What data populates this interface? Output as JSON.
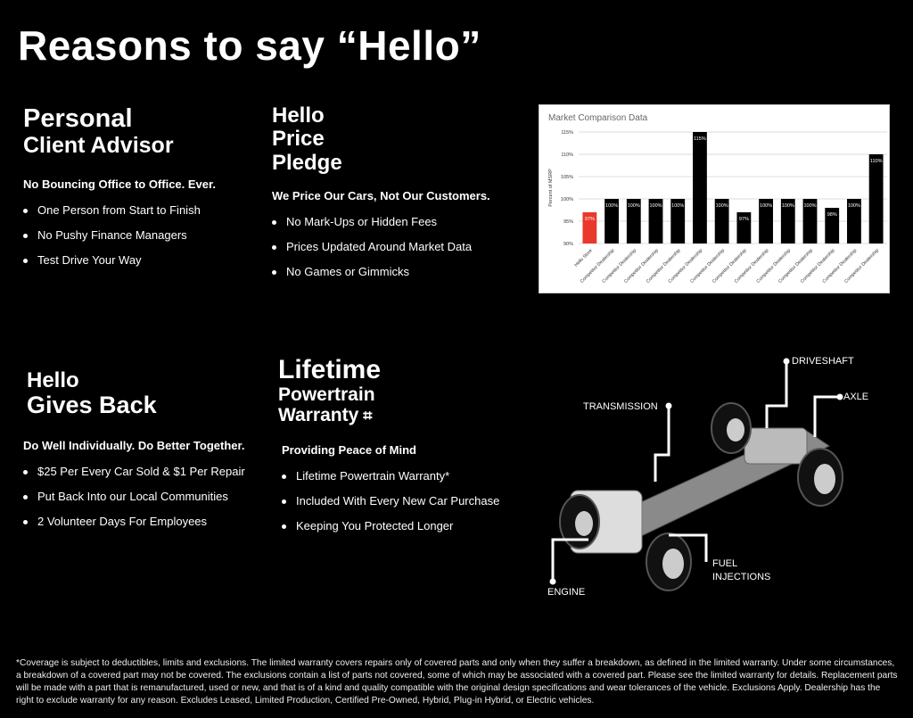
{
  "page_title": "Reasons to say “Hello”",
  "sections": [
    {
      "title_lines": [
        "Personal",
        "Client Advisor"
      ],
      "subtitle": "No Bouncing Office to Office. Ever.",
      "bullets": [
        "One Person from Start to Finish",
        "No Pushy Finance Managers",
        "Test Drive Your Way"
      ]
    },
    {
      "title_lines": [
        "Hello",
        "Price",
        "Pledge"
      ],
      "subtitle": "We Price Our Cars, Not Our Customers.",
      "bullets": [
        "No Mark-Ups or Hidden Fees",
        "Prices Updated Around Market Data",
        "No Games or Gimmicks"
      ]
    },
    {
      "title_lines": [
        "Hello",
        "Gives Back"
      ],
      "subtitle": "Do Well Individually. Do Better Together.",
      "bullets": [
        "$25 Per Every Car Sold & $1 Per Repair",
        "Put Back Into our Local Communities",
        "2 Volunteer Days For Employees"
      ]
    },
    {
      "title_lines": [
        "Lifetime",
        "Powertrain",
        "Warranty"
      ],
      "subtitle": "Providing Peace of Mind",
      "bullets": [
        "Lifetime Powertrain Warranty*",
        "Included With Every New Car Purchase",
        "Keeping You Protected Longer"
      ]
    }
  ],
  "diagram_labels": {
    "driveshaft": "DRIVESHAFT",
    "axle": "AXLE",
    "transmission": "TRANSMISSION",
    "fuel": "FUEL INJECTIONS",
    "engine": "ENGINE"
  },
  "chart_data": {
    "type": "bar",
    "title": "Market Comparison Data",
    "xlabel": "",
    "ylabel": "Percent of MSRP",
    "ylim": [
      90,
      115
    ],
    "yticks": [
      "90%",
      "95%",
      "100%",
      "105%",
      "110%",
      "115%"
    ],
    "grid": true,
    "categories": [
      "Hello Store",
      "Competitor Dealership",
      "Competitor Dealership",
      "Competitor Dealership",
      "Competitor Dealership",
      "Competitor Dealership",
      "Competitor Dealership",
      "Competitor Dealership",
      "Competitor Dealership",
      "Competitor Dealership",
      "Competitor Dealership",
      "Competitor Dealership",
      "Competitor Dealership",
      "Competitor Dealership"
    ],
    "values": [
      97,
      100,
      100,
      100,
      100,
      115,
      100,
      97,
      100,
      100,
      100,
      98,
      100,
      110
    ],
    "colors": {
      "highlight": "#e8392b",
      "default": "#000000"
    }
  },
  "footnote": "*Coverage is subject to deductibles, limits and exclusions. The limited warranty covers repairs only of covered parts and only when they suffer a breakdown, as defined in the limited warranty. Under some circumstances, a breakdown of a covered part may not be covered. The exclusions contain a list of parts not covered, some of which may be associated with a covered part. Please see the limited warranty for details. Replacement parts will be made with a part that is remanufactured, used or new, and that is of a kind and quality compatible with the original design specifications and wear tolerances of the vehicle. Exclusions Apply. Dealership has the right to exclude warranty for any reason. Excludes Leased, Limited Production, Certified Pre-Owned, Hybrid, Plug-in Hybrid, or Electric vehicles."
}
